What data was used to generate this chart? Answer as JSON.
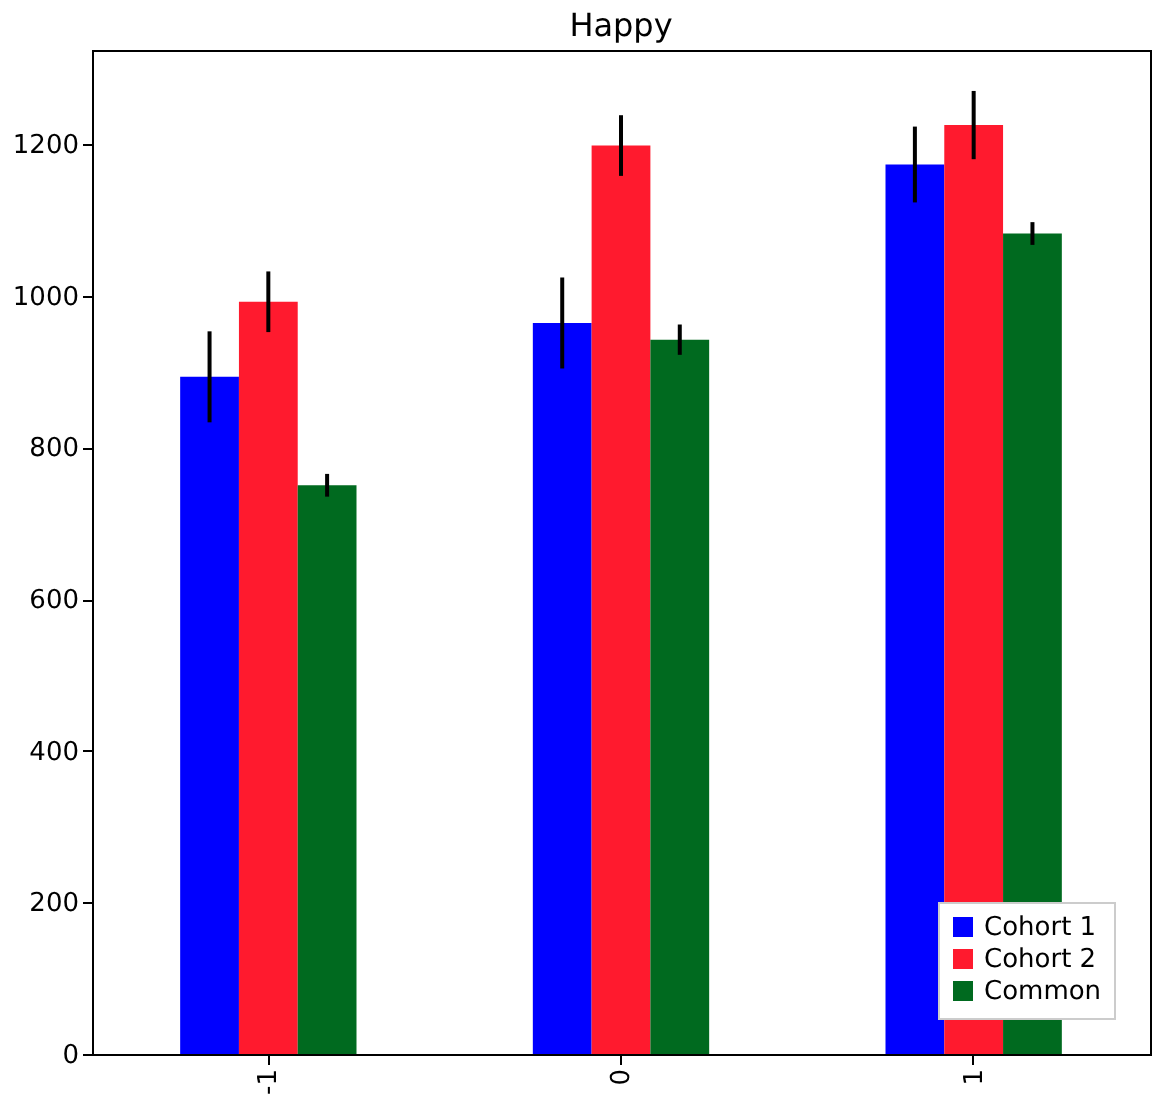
{
  "chart_data": {
    "type": "bar",
    "title": "Happy",
    "categories": [
      "-1",
      "0",
      "1"
    ],
    "series": [
      {
        "name": "Cohort 1",
        "color": "#0000ff",
        "values": [
          893,
          964,
          1173
        ],
        "errors": [
          60,
          60,
          50
        ]
      },
      {
        "name": "Cohort 2",
        "color": "#ff1a2e",
        "values": [
          992,
          1198,
          1225
        ],
        "errors": [
          40,
          40,
          45
        ]
      },
      {
        "name": "Common",
        "color": "#006a1f",
        "values": [
          750,
          942,
          1082
        ],
        "errors": [
          15,
          20,
          15
        ]
      }
    ],
    "ylim": [
      0,
      1324
    ],
    "yticks": [
      0,
      200,
      400,
      600,
      800,
      1000,
      1200
    ],
    "grid": false,
    "legend": "bottom right"
  }
}
